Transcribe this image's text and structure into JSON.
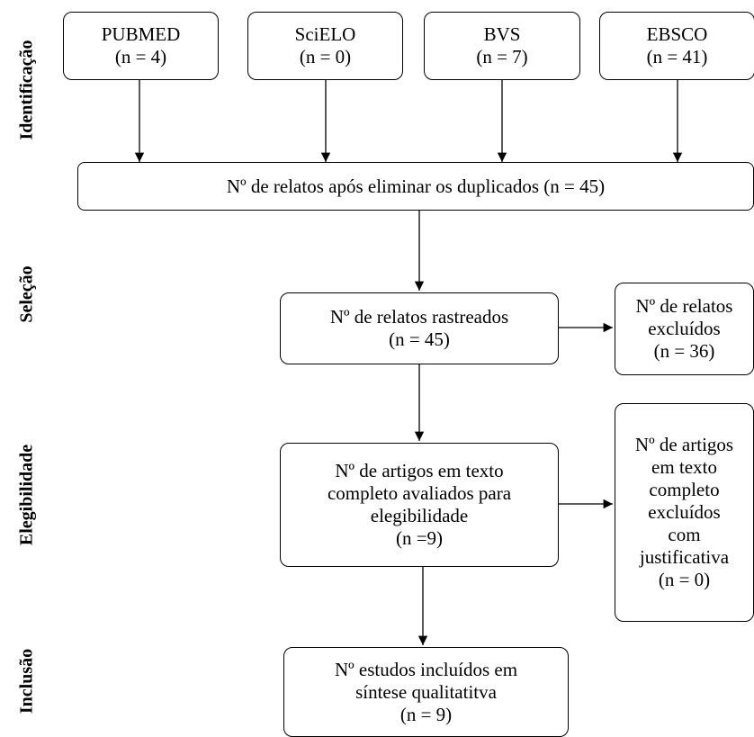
{
  "stages": {
    "identificacao": "Identificação",
    "selecao": "Seleção",
    "elegibilidade": "Elegibilidade",
    "inclusao": "Inclusão"
  },
  "sources": {
    "pubmed": {
      "name": "PUBMED",
      "count": "(n = 4)"
    },
    "scielo": {
      "name": "SciELO",
      "count": "(n = 0)"
    },
    "bvs": {
      "name": "BVS",
      "count": "(n = 7)"
    },
    "ebsco": {
      "name": "EBSCO",
      "count": "(n = 41)"
    }
  },
  "deduplicated": {
    "text": "Nº de relatos após eliminar os duplicados (n = 45)"
  },
  "screened": {
    "line1": "Nº de relatos rastreados",
    "line2": "(n = 45)"
  },
  "excluded_records": {
    "line1": "Nº de relatos",
    "line2": "excluídos",
    "line3": "(n = 36)"
  },
  "fulltext": {
    "line1": "Nº de artigos em texto",
    "line2": "completo avaliados para",
    "line3": "elegibilidade",
    "line4": "(n =9)"
  },
  "excluded_fulltext": {
    "line1": "Nº de artigos",
    "line2": "em texto",
    "line3": "completo",
    "line4": "excluídos",
    "line5": "com",
    "line6": "justificativa",
    "line7": "(n = 0)"
  },
  "included": {
    "line1": "Nº estudos incluídos em",
    "line2": "síntese qualitatitva",
    "line3": "(n = 9)"
  }
}
